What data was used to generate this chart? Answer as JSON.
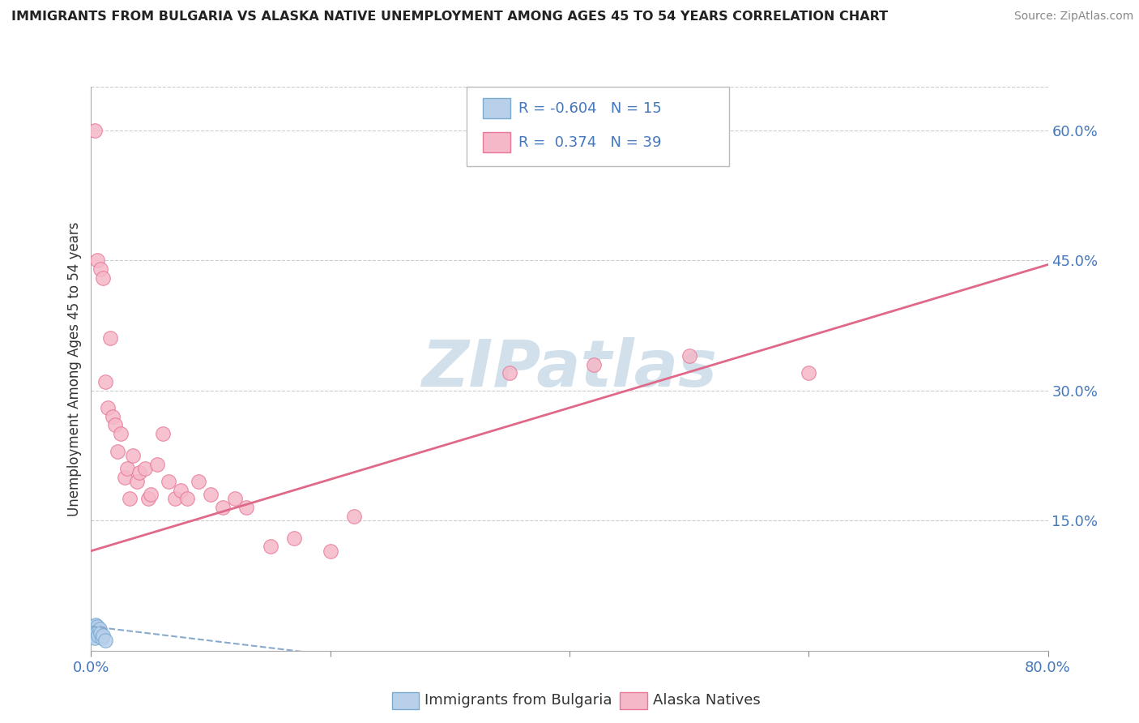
{
  "title": "IMMIGRANTS FROM BULGARIA VS ALASKA NATIVE UNEMPLOYMENT AMONG AGES 45 TO 54 YEARS CORRELATION CHART",
  "source": "Source: ZipAtlas.com",
  "ylabel": "Unemployment Among Ages 45 to 54 years",
  "xlim": [
    0.0,
    0.8
  ],
  "ylim": [
    0.0,
    0.65
  ],
  "xtick_positions": [
    0.0,
    0.2,
    0.4,
    0.6,
    0.8
  ],
  "xtick_labels": [
    "0.0%",
    "",
    "",
    "",
    "80.0%"
  ],
  "yticks_right": [
    0.15,
    0.3,
    0.45,
    0.6
  ],
  "ytick_right_labels": [
    "15.0%",
    "30.0%",
    "45.0%",
    "60.0%"
  ],
  "legend_R1": "-0.604",
  "legend_N1": "15",
  "legend_R2": "0.374",
  "legend_N2": "39",
  "legend_label1": "Immigrants from Bulgaria",
  "legend_label2": "Alaska Natives",
  "blue_fill": "#b8d0ea",
  "pink_fill": "#f5b8c8",
  "blue_edge": "#7aaad0",
  "pink_edge": "#e87898",
  "pink_line_color": "#e06888",
  "blue_line_color": "#88aacc",
  "text_color": "#4477bb",
  "watermark_color": "#ccdde8",
  "background_color": "#ffffff",
  "grid_color": "#cccccc",
  "blue_dots_x": [
    0.001,
    0.002,
    0.002,
    0.003,
    0.003,
    0.004,
    0.004,
    0.005,
    0.005,
    0.006,
    0.007,
    0.008,
    0.009,
    0.01,
    0.012
  ],
  "blue_dots_y": [
    0.02,
    0.028,
    0.018,
    0.025,
    0.015,
    0.022,
    0.03,
    0.028,
    0.022,
    0.018,
    0.025,
    0.02,
    0.015,
    0.018,
    0.012
  ],
  "pink_dots_x": [
    0.003,
    0.005,
    0.008,
    0.01,
    0.012,
    0.014,
    0.016,
    0.018,
    0.02,
    0.022,
    0.025,
    0.028,
    0.03,
    0.032,
    0.035,
    0.038,
    0.04,
    0.045,
    0.048,
    0.05,
    0.055,
    0.06,
    0.065,
    0.07,
    0.075,
    0.08,
    0.09,
    0.1,
    0.11,
    0.12,
    0.13,
    0.15,
    0.17,
    0.2,
    0.22,
    0.35,
    0.42,
    0.5,
    0.6
  ],
  "pink_dots_y": [
    0.6,
    0.45,
    0.44,
    0.43,
    0.31,
    0.28,
    0.36,
    0.27,
    0.26,
    0.23,
    0.25,
    0.2,
    0.21,
    0.175,
    0.225,
    0.195,
    0.205,
    0.21,
    0.175,
    0.18,
    0.215,
    0.25,
    0.195,
    0.175,
    0.185,
    0.175,
    0.195,
    0.18,
    0.165,
    0.175,
    0.165,
    0.12,
    0.13,
    0.115,
    0.155,
    0.32,
    0.33,
    0.34,
    0.32
  ],
  "pink_line_x": [
    0.0,
    0.8
  ],
  "pink_line_y": [
    0.115,
    0.445
  ],
  "blue_line_x": [
    0.0,
    0.2
  ],
  "blue_line_y": [
    0.028,
    -0.005
  ],
  "dot_size": 160
}
